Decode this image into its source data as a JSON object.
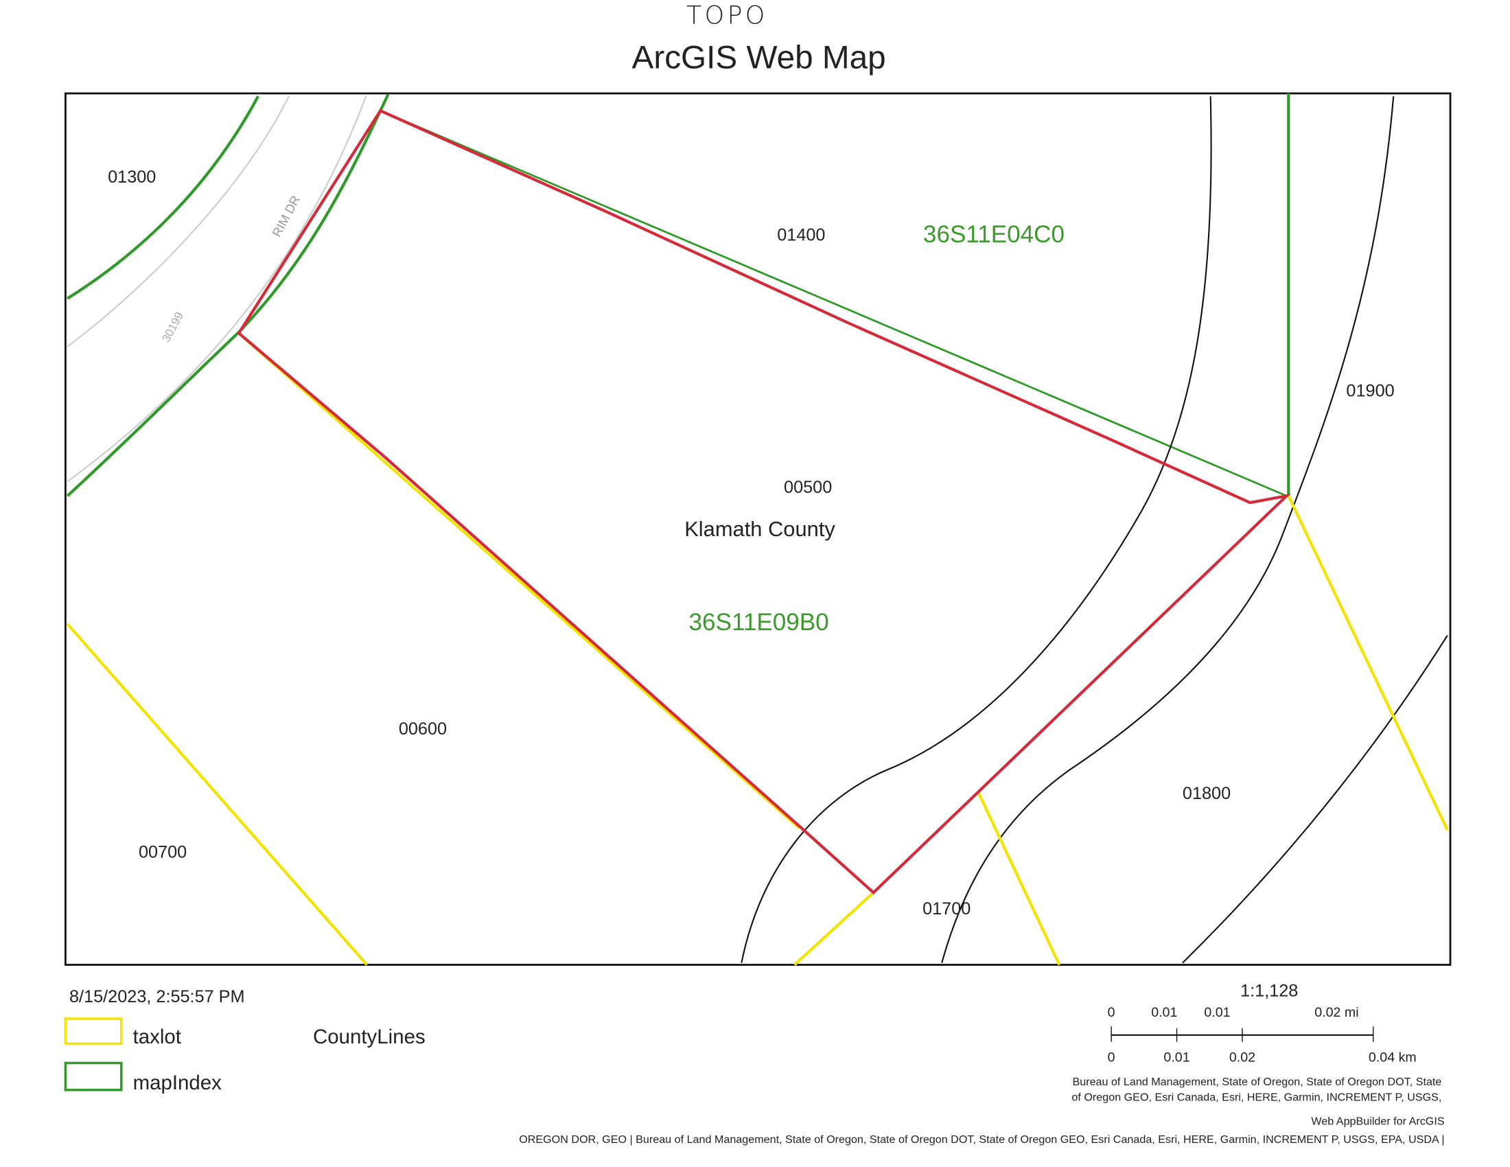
{
  "header": {
    "handwritten_note": "TOPO",
    "title": "ArcGIS Web Map"
  },
  "map": {
    "parcels": [
      "01300",
      "01400",
      "01900",
      "00500",
      "00600",
      "01800",
      "00700",
      "01700"
    ],
    "map_index_labels": [
      "36S11E04C0",
      "36S11E09B0"
    ],
    "county_label": "Klamath County",
    "road_name": "RIM DR",
    "address": "30199"
  },
  "footer": {
    "timestamp": "8/15/2023, 2:55:57 PM",
    "legend": {
      "taxlot": "taxlot",
      "county_lines": "CountyLines",
      "map_index": "mapIndex"
    },
    "scale": {
      "ratio": "1:1,128",
      "mi_labels": [
        "0",
        "0.01",
        "0.01",
        "0.02 mi"
      ],
      "km_labels": [
        "0",
        "0.01",
        "0.02",
        "0.04 km"
      ]
    },
    "attribution": [
      "Bureau of Land Management, State of Oregon, State of Oregon DOT, State",
      "of Oregon GEO, Esri Canada, Esri, HERE, Garmin, INCREMENT P, USGS,",
      "Web AppBuilder for ArcGIS",
      "OREGON DOR, GEO | Bureau of Land Management, State of Oregon, State of Oregon DOT, State of Oregon GEO, Esri Canada, Esri, HERE, Garmin, INCREMENT P, USGS, EPA, USDA |"
    ]
  }
}
